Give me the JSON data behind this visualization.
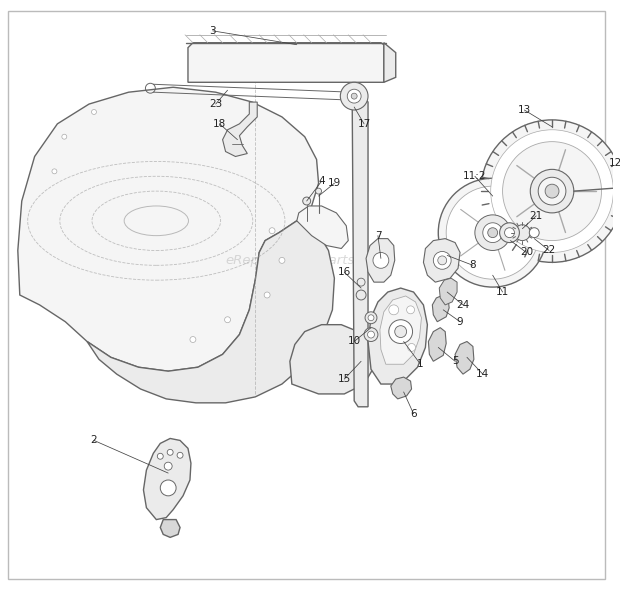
{
  "bg_color": "#ffffff",
  "border_color": "#bbbbbb",
  "watermark": "eReplacementParts.com",
  "watermark_color": "#bbbbbb",
  "line_color": "#666666",
  "light_line": "#aaaaaa",
  "fill_light": "#f5f5f5",
  "fill_mid": "#ebebeb",
  "fill_dark": "#d8d8d8",
  "label_color": "#222222",
  "dashed_color": "#999999"
}
